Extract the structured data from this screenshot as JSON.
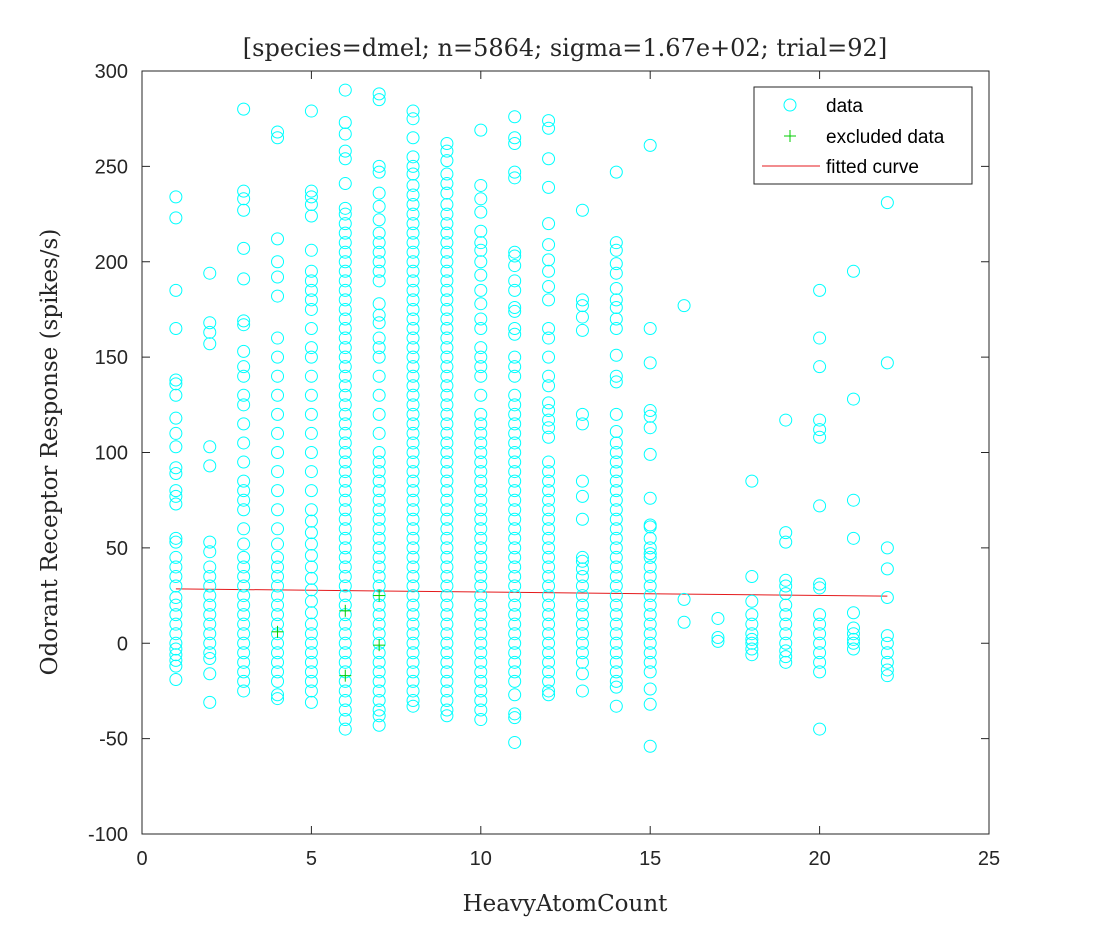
{
  "colors": {
    "data": "#00ffff",
    "excluded": "#00cc00",
    "fit": "#e41a1c",
    "axis": "#262626"
  },
  "chart_data": {
    "type": "scatter",
    "title": "[species=dmel; n=5864; sigma=1.67e+02; trial=92]",
    "xlabel": "HeavyAtomCount",
    "ylabel": "Odorant Receptor Response (spikes/s)",
    "xlim": [
      0,
      25
    ],
    "ylim": [
      -100,
      300
    ],
    "xticks": [
      0,
      5,
      10,
      15,
      20,
      25
    ],
    "yticks": [
      -100,
      -50,
      0,
      50,
      100,
      150,
      200,
      250,
      300
    ],
    "grid": false,
    "legend": {
      "position": "top-right",
      "entries": [
        {
          "label": "data",
          "marker": "circle"
        },
        {
          "label": "excluded data",
          "marker": "plus"
        },
        {
          "label": "fitted curve",
          "marker": "line"
        }
      ]
    },
    "series": [
      {
        "name": "data",
        "marker": "circle",
        "columns": [
          {
            "x": 1,
            "y": [
              234,
              223,
              185,
              165,
              138,
              136,
              130,
              118,
              110,
              103,
              92,
              89,
              80,
              77,
              73,
              55,
              53,
              45,
              40,
              35,
              30,
              24,
              20,
              15,
              10,
              5,
              0,
              -3,
              -6,
              -9,
              -12,
              -19
            ]
          },
          {
            "x": 2,
            "y": [
              194,
              168,
              163,
              157,
              103,
              93,
              53,
              48,
              40,
              35,
              30,
              25,
              20,
              15,
              10,
              5,
              0,
              -5,
              -8,
              -16,
              -31
            ]
          },
          {
            "x": 3,
            "y": [
              280,
              237,
              233,
              227,
              207,
              191,
              169,
              167,
              153,
              145,
              140,
              130,
              125,
              115,
              105,
              95,
              85,
              80,
              75,
              70,
              60,
              52,
              45,
              40,
              35,
              30,
              25,
              20,
              15,
              10,
              5,
              0,
              -5,
              -10,
              -15,
              -20,
              -25
            ]
          },
          {
            "x": 4,
            "y": [
              268,
              265,
              212,
              200,
              192,
              182,
              160,
              150,
              140,
              130,
              120,
              110,
              100,
              90,
              80,
              70,
              60,
              52,
              45,
              40,
              35,
              30,
              25,
              20,
              15,
              10,
              5,
              0,
              -5,
              -10,
              -15,
              -20,
              -27,
              -29
            ]
          },
          {
            "x": 5,
            "y": [
              279,
              237,
              234,
              230,
              224,
              206,
              195,
              190,
              185,
              180,
              175,
              165,
              155,
              150,
              140,
              130,
              120,
              110,
              100,
              90,
              80,
              70,
              64,
              58,
              52,
              46,
              40,
              34,
              28,
              22,
              16,
              10,
              5,
              0,
              -5,
              -10,
              -15,
              -20,
              -25,
              -31
            ]
          },
          {
            "x": 6,
            "y": [
              290,
              273,
              267,
              258,
              254,
              241,
              228,
              225,
              220,
              215,
              210,
              205,
              200,
              195,
              190,
              185,
              180,
              175,
              170,
              165,
              160,
              155,
              150,
              145,
              140,
              135,
              130,
              125,
              120,
              115,
              110,
              105,
              100,
              95,
              90,
              85,
              80,
              75,
              70,
              65,
              60,
              55,
              50,
              45,
              40,
              35,
              30,
              25,
              20,
              15,
              10,
              5,
              0,
              -5,
              -10,
              -15,
              -20,
              -25,
              -30,
              -35,
              -40,
              -45
            ]
          },
          {
            "x": 7,
            "y": [
              288,
              285,
              250,
              247,
              236,
              229,
              222,
              215,
              210,
              205,
              200,
              195,
              190,
              178,
              172,
              168,
              160,
              155,
              150,
              140,
              130,
              120,
              110,
              100,
              95,
              90,
              85,
              80,
              75,
              70,
              65,
              60,
              55,
              50,
              45,
              40,
              35,
              30,
              25,
              20,
              15,
              10,
              5,
              0,
              -5,
              -10,
              -15,
              -20,
              -25,
              -30,
              -35,
              -38,
              -43
            ]
          },
          {
            "x": 8,
            "y": [
              279,
              275,
              265,
              255,
              250,
              246,
              240,
              235,
              230,
              225,
              220,
              215,
              210,
              205,
              200,
              195,
              190,
              185,
              180,
              175,
              170,
              165,
              160,
              155,
              150,
              145,
              140,
              135,
              130,
              125,
              120,
              115,
              110,
              105,
              100,
              95,
              90,
              85,
              80,
              75,
              70,
              65,
              60,
              55,
              50,
              45,
              40,
              35,
              30,
              25,
              20,
              15,
              10,
              5,
              0,
              -5,
              -10,
              -15,
              -20,
              -25,
              -30,
              -33
            ]
          },
          {
            "x": 9,
            "y": [
              262,
              258,
              253,
              246,
              241,
              236,
              230,
              225,
              220,
              215,
              210,
              205,
              200,
              195,
              190,
              185,
              180,
              175,
              170,
              165,
              160,
              155,
              150,
              145,
              140,
              135,
              130,
              125,
              120,
              115,
              110,
              105,
              100,
              95,
              90,
              85,
              80,
              75,
              70,
              65,
              60,
              55,
              50,
              45,
              40,
              35,
              30,
              25,
              20,
              15,
              10,
              5,
              0,
              -5,
              -10,
              -15,
              -20,
              -25,
              -30,
              -35,
              -38
            ]
          },
          {
            "x": 10,
            "y": [
              269,
              240,
              233,
              226,
              216,
              210,
              206,
              200,
              193,
              185,
              178,
              170,
              165,
              155,
              150,
              145,
              140,
              130,
              120,
              115,
              110,
              105,
              100,
              95,
              90,
              85,
              80,
              75,
              70,
              65,
              60,
              55,
              50,
              45,
              40,
              35,
              30,
              25,
              20,
              15,
              10,
              5,
              0,
              -5,
              -10,
              -15,
              -20,
              -25,
              -30,
              -35,
              -40
            ]
          },
          {
            "x": 11,
            "y": [
              276,
              265,
              262,
              247,
              244,
              205,
              203,
              198,
              190,
              185,
              176,
              174,
              165,
              162,
              150,
              145,
              140,
              130,
              125,
              120,
              115,
              110,
              105,
              100,
              95,
              90,
              85,
              80,
              75,
              70,
              65,
              60,
              55,
              50,
              45,
              40,
              35,
              30,
              25,
              20,
              15,
              10,
              5,
              0,
              -5,
              -10,
              -15,
              -20,
              -27,
              -37,
              -39,
              -52
            ]
          },
          {
            "x": 12,
            "y": [
              274,
              270,
              254,
              239,
              220,
              209,
              201,
              195,
              187,
              180,
              165,
              160,
              150,
              140,
              135,
              126,
              122,
              117,
              113,
              108,
              95,
              90,
              85,
              80,
              75,
              70,
              65,
              60,
              55,
              50,
              45,
              40,
              35,
              30,
              25,
              20,
              15,
              10,
              5,
              0,
              -5,
              -10,
              -15,
              -20,
              -25,
              -27
            ]
          },
          {
            "x": 13,
            "y": [
              227,
              180,
              177,
              171,
              164,
              120,
              115,
              85,
              77,
              65,
              45,
              43,
              39,
              35,
              30,
              25,
              20,
              15,
              10,
              5,
              0,
              -5,
              -10,
              -16,
              -25
            ]
          },
          {
            "x": 14,
            "y": [
              247,
              210,
              206,
              199,
              194,
              186,
              180,
              176,
              170,
              165,
              151,
              140,
              137,
              120,
              111,
              105,
              100,
              95,
              90,
              85,
              80,
              75,
              70,
              65,
              60,
              55,
              50,
              45,
              40,
              35,
              30,
              25,
              20,
              15,
              10,
              5,
              0,
              -5,
              -10,
              -15,
              -20,
              -23,
              -33
            ]
          },
          {
            "x": 15,
            "y": [
              261,
              165,
              147,
              122,
              119,
              113,
              99,
              76,
              62,
              61,
              55,
              50,
              47,
              45,
              40,
              35,
              30,
              25,
              20,
              15,
              10,
              5,
              0,
              -5,
              -10,
              -15,
              -24,
              -32,
              -54
            ]
          },
          {
            "x": 16,
            "y": [
              177,
              23,
              11
            ]
          },
          {
            "x": 17,
            "y": [
              13,
              3,
              1
            ]
          },
          {
            "x": 18,
            "y": [
              85,
              35,
              22,
              15,
              10,
              5,
              2,
              0,
              -3,
              -6
            ]
          },
          {
            "x": 19,
            "y": [
              117,
              58,
              53,
              33,
              30,
              26,
              20,
              15,
              10,
              5,
              0,
              -4,
              -7,
              -10
            ]
          },
          {
            "x": 20,
            "y": [
              185,
              160,
              145,
              117,
              112,
              108,
              72,
              31,
              29,
              15,
              10,
              5,
              0,
              -5,
              -10,
              -15,
              -45
            ]
          },
          {
            "x": 21,
            "y": [
              195,
              128,
              75,
              55,
              16,
              8,
              5,
              2,
              0,
              -3
            ]
          },
          {
            "x": 22,
            "y": [
              231,
              147,
              50,
              39,
              24,
              4,
              0,
              -5,
              -10,
              -14,
              -17
            ]
          }
        ]
      },
      {
        "name": "excluded data",
        "marker": "plus",
        "points": [
          [
            4,
            6
          ],
          [
            6,
            17
          ],
          [
            6,
            -17
          ],
          [
            7,
            25
          ],
          [
            7,
            -1
          ]
        ]
      },
      {
        "name": "fitted curve",
        "marker": "line",
        "points": [
          [
            1,
            28.5
          ],
          [
            22,
            24.7
          ]
        ]
      }
    ]
  }
}
